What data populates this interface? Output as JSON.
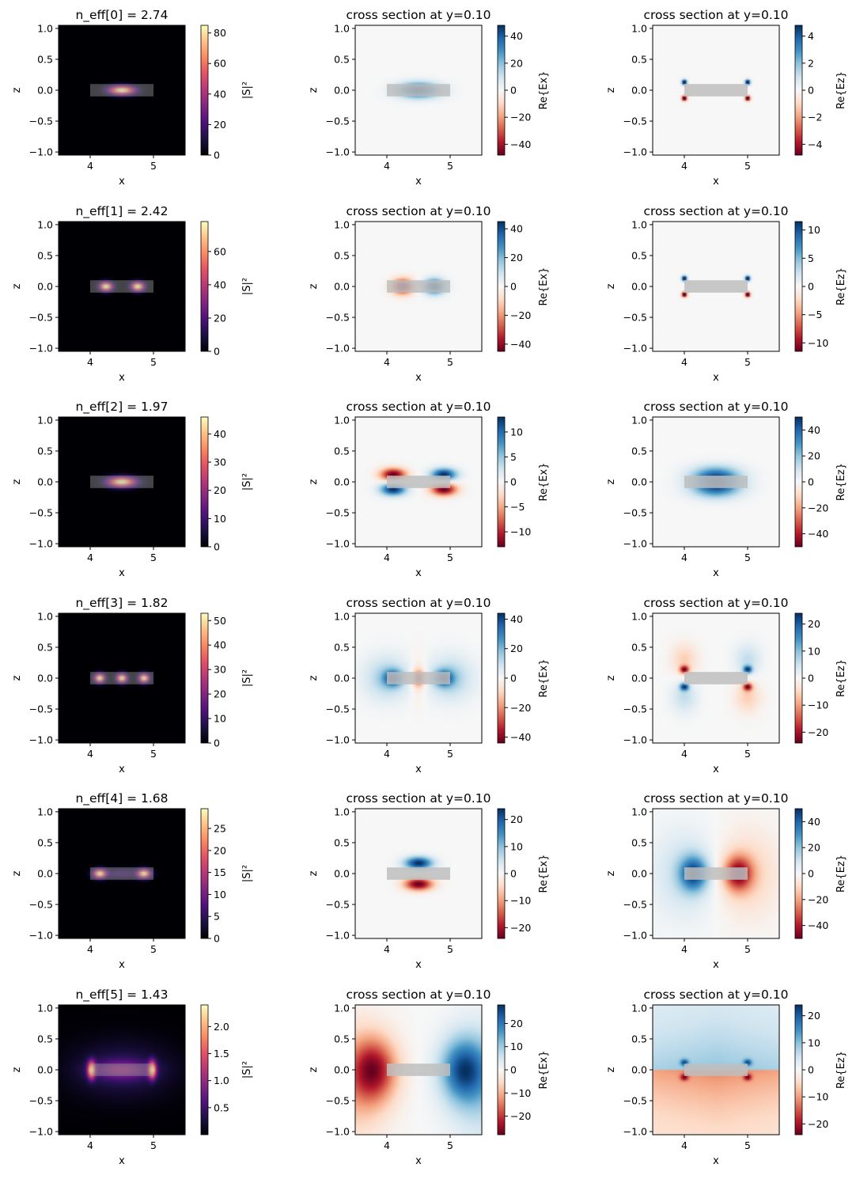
{
  "chart_data": {
    "type": "heatmap",
    "description_of_grid": "6 rows x 3 columns of mode field plots",
    "xlim": [
      3.5,
      5.5
    ],
    "ylim": [
      -1.05,
      1.05
    ],
    "x_ticks": [
      4,
      5
    ],
    "y_ticks": [
      1.0,
      0.5,
      0.0,
      -0.5,
      -1.0
    ],
    "x_tick_labels": [
      "4",
      "5"
    ],
    "y_tick_labels": [
      "1.0",
      "0.5",
      "0.0",
      "−0.5",
      "−1.0"
    ],
    "xlabel": "x",
    "ylabel": "z",
    "waveguide_core": {
      "x0": 4.0,
      "x1": 5.0,
      "z0": -0.1,
      "z1": 0.1
    },
    "rows": [
      {
        "mode_index": 0,
        "n_eff": 2.74,
        "panels": [
          {
            "title": "n_eff[0] = 2.74",
            "field": "|S|²",
            "cbar_label": "|S|²",
            "colormap": "magma",
            "vmin": 0,
            "vmax": 85,
            "cbar_ticks": [
              0,
              20,
              40,
              60,
              80
            ],
            "cbar_tick_labels": [
              "0",
              "20",
              "40",
              "60",
              "80"
            ],
            "pattern": "s_center"
          },
          {
            "title": "cross section at y=0.10",
            "field": "Re{Ex}",
            "cbar_label": "Re{Ex}",
            "colormap": "RdBu",
            "vmin": -48,
            "vmax": 48,
            "cbar_ticks": [
              40,
              20,
              0,
              -20,
              -40
            ],
            "cbar_tick_labels": [
              "40",
              "20",
              "0",
              "−20",
              "−40"
            ],
            "pattern": "ex_m0"
          },
          {
            "title": "cross section at y=0.10",
            "field": "Re{Ez}",
            "cbar_label": "Re{Ez}",
            "colormap": "RdBu",
            "vmin": -4.8,
            "vmax": 4.8,
            "cbar_ticks": [
              4,
              2,
              0,
              -2,
              -4
            ],
            "cbar_tick_labels": [
              "4",
              "2",
              "0",
              "−2",
              "−4"
            ],
            "pattern": "ez_m0"
          }
        ]
      },
      {
        "mode_index": 1,
        "n_eff": 2.42,
        "panels": [
          {
            "title": "n_eff[1] = 2.42",
            "field": "|S|²",
            "cbar_label": "|S|²",
            "colormap": "magma",
            "vmin": 0,
            "vmax": 78,
            "cbar_ticks": [
              0,
              20,
              40,
              60
            ],
            "cbar_tick_labels": [
              "0",
              "20",
              "40",
              "60"
            ],
            "pattern": "s_two"
          },
          {
            "title": "cross section at y=0.10",
            "field": "Re{Ex}",
            "cbar_label": "Re{Ex}",
            "colormap": "RdBu",
            "vmin": -45,
            "vmax": 45,
            "cbar_ticks": [
              40,
              20,
              0,
              -20,
              -40
            ],
            "cbar_tick_labels": [
              "40",
              "20",
              "0",
              "−20",
              "−40"
            ],
            "pattern": "ex_m1"
          },
          {
            "title": "cross section at y=0.10",
            "field": "Re{Ez}",
            "cbar_label": "Re{Ez}",
            "colormap": "RdBu",
            "vmin": -11.5,
            "vmax": 11.5,
            "cbar_ticks": [
              10,
              5,
              0,
              -5,
              -10
            ],
            "cbar_tick_labels": [
              "10",
              "5",
              "0",
              "−5",
              "−10"
            ],
            "pattern": "ez_m1"
          }
        ]
      },
      {
        "mode_index": 2,
        "n_eff": 1.97,
        "panels": [
          {
            "title": "n_eff[2] = 1.97",
            "field": "|S|²",
            "cbar_label": "|S|²",
            "colormap": "magma",
            "vmin": 0,
            "vmax": 46,
            "cbar_ticks": [
              0,
              10,
              20,
              30,
              40
            ],
            "cbar_tick_labels": [
              "0",
              "10",
              "20",
              "30",
              "40"
            ],
            "pattern": "s_center2"
          },
          {
            "title": "cross section at y=0.10",
            "field": "Re{Ex}",
            "cbar_label": "Re{Ex}",
            "colormap": "RdBu",
            "vmin": -13,
            "vmax": 13,
            "cbar_ticks": [
              10,
              5,
              0,
              -5,
              -10
            ],
            "cbar_tick_labels": [
              "10",
              "5",
              "0",
              "−5",
              "−10"
            ],
            "pattern": "ex_m2"
          },
          {
            "title": "cross section at y=0.10",
            "field": "Re{Ez}",
            "cbar_label": "Re{Ez}",
            "colormap": "RdBu",
            "vmin": -50,
            "vmax": 50,
            "cbar_ticks": [
              40,
              20,
              0,
              -20,
              -40
            ],
            "cbar_tick_labels": [
              "40",
              "20",
              "0",
              "−20",
              "−40"
            ],
            "pattern": "ez_m2"
          }
        ]
      },
      {
        "mode_index": 3,
        "n_eff": 1.82,
        "panels": [
          {
            "title": "n_eff[3] = 1.82",
            "field": "|S|²",
            "cbar_label": "|S|²",
            "colormap": "magma",
            "vmin": 0,
            "vmax": 53,
            "cbar_ticks": [
              0,
              10,
              20,
              30,
              40,
              50
            ],
            "cbar_tick_labels": [
              "0",
              "10",
              "20",
              "30",
              "40",
              "50"
            ],
            "pattern": "s_three"
          },
          {
            "title": "cross section at y=0.10",
            "field": "Re{Ex}",
            "cbar_label": "Re{Ex}",
            "colormap": "RdBu",
            "vmin": -44,
            "vmax": 44,
            "cbar_ticks": [
              40,
              20,
              0,
              -20,
              -40
            ],
            "cbar_tick_labels": [
              "40",
              "20",
              "0",
              "−20",
              "−40"
            ],
            "pattern": "ex_m3"
          },
          {
            "title": "cross section at y=0.10",
            "field": "Re{Ez}",
            "cbar_label": "Re{Ez}",
            "colormap": "RdBu",
            "vmin": -24,
            "vmax": 24,
            "cbar_ticks": [
              20,
              10,
              0,
              -10,
              -20
            ],
            "cbar_tick_labels": [
              "20",
              "10",
              "0",
              "−10",
              "−20"
            ],
            "pattern": "ez_m3"
          }
        ]
      },
      {
        "mode_index": 4,
        "n_eff": 1.68,
        "panels": [
          {
            "title": "n_eff[4] = 1.68",
            "field": "|S|²",
            "cbar_label": "|S|²",
            "colormap": "magma",
            "vmin": 0,
            "vmax": 29.5,
            "cbar_ticks": [
              0,
              5,
              10,
              15,
              20,
              25
            ],
            "cbar_tick_labels": [
              "0",
              "5",
              "10",
              "15",
              "20",
              "25"
            ],
            "pattern": "s_two_wide"
          },
          {
            "title": "cross section at y=0.10",
            "field": "Re{Ex}",
            "cbar_label": "Re{Ex}",
            "colormap": "RdBu",
            "vmin": -24,
            "vmax": 24,
            "cbar_ticks": [
              20,
              10,
              0,
              -10,
              -20
            ],
            "cbar_tick_labels": [
              "20",
              "10",
              "0",
              "−10",
              "−20"
            ],
            "pattern": "ex_m4"
          },
          {
            "title": "cross section at y=0.10",
            "field": "Re{Ez}",
            "cbar_label": "Re{Ez}",
            "colormap": "RdBu",
            "vmin": -50,
            "vmax": 50,
            "cbar_ticks": [
              40,
              20,
              0,
              -20,
              -40
            ],
            "cbar_tick_labels": [
              "40",
              "20",
              "0",
              "−20",
              "−40"
            ],
            "pattern": "ez_m4"
          }
        ]
      },
      {
        "mode_index": 5,
        "n_eff": 1.43,
        "panels": [
          {
            "title": "n_eff[5] = 1.43",
            "field": "|S|²",
            "cbar_label": "|S|²",
            "colormap": "magma",
            "vmin": 0,
            "vmax": 2.4,
            "cbar_ticks": [
              0.5,
              1.0,
              1.5,
              2.0
            ],
            "cbar_tick_labels": [
              "0.5",
              "1.0",
              "1.5",
              "2.0"
            ],
            "pattern": "s_m5"
          },
          {
            "title": "cross section at y=0.10",
            "field": "Re{Ex}",
            "cbar_label": "Re{Ex}",
            "colormap": "RdBu",
            "vmin": -28,
            "vmax": 28,
            "cbar_ticks": [
              20,
              10,
              0,
              -10,
              -20
            ],
            "cbar_tick_labels": [
              "20",
              "10",
              "0",
              "−10",
              "−20"
            ],
            "pattern": "ex_m5"
          },
          {
            "title": "cross section at y=0.10",
            "field": "Re{Ez}",
            "cbar_label": "Re{Ez}",
            "colormap": "RdBu",
            "vmin": -24,
            "vmax": 24,
            "cbar_ticks": [
              20,
              10,
              0,
              -10,
              -20
            ],
            "cbar_tick_labels": [
              "20",
              "10",
              "0",
              "−10",
              "−20"
            ],
            "pattern": "ez_m5"
          }
        ]
      }
    ]
  }
}
